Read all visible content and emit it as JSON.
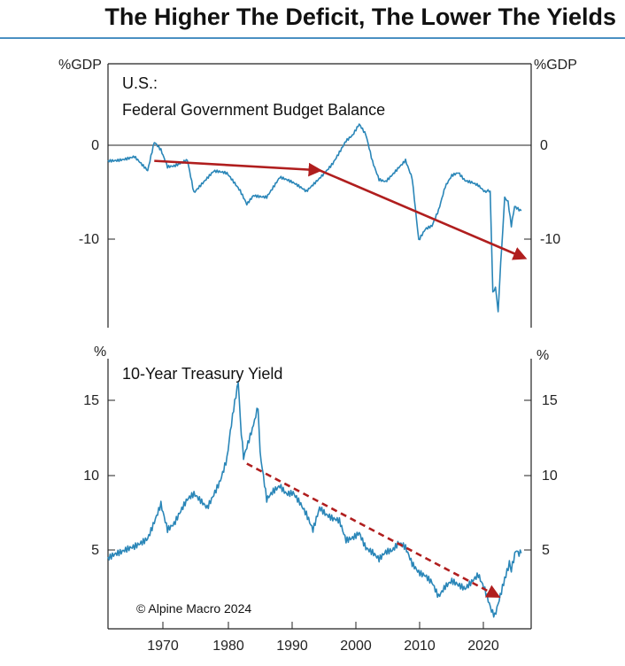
{
  "title": "The Higher The Deficit, The Lower The Yields",
  "credit": "© Alpine Macro 2024",
  "colors": {
    "line": "#2a86b8",
    "arrow": "#b01e1e",
    "rule": "#4a90c2"
  },
  "chart_data": [
    {
      "type": "line",
      "title": "U.S.:",
      "subtitle": "Federal Government Budget Balance",
      "ylabel": "%GDP",
      "ylim": [
        -19,
        9
      ],
      "xlim": [
        1962,
        2026
      ],
      "yticks": [
        0,
        -10
      ],
      "xticks": [
        1970,
        1980,
        1990,
        2000,
        2010,
        2020
      ],
      "zero_line": true,
      "series": [
        {
          "name": "Federal Government Budget Balance",
          "x": [
            1962,
            1964,
            1966,
            1968,
            1969,
            1970,
            1971,
            1972,
            1974,
            1975,
            1976,
            1978,
            1980,
            1982,
            1983,
            1984,
            1986,
            1988,
            1990,
            1992,
            1993,
            1995,
            1996,
            1997,
            1998,
            1999,
            2000,
            2001,
            2002,
            2003,
            2004,
            2006,
            2007,
            2008,
            2009,
            2010,
            2011,
            2012,
            2013,
            2014,
            2015,
            2016,
            2017,
            2018,
            2019,
            2019.8,
            2020.2,
            2020.6,
            2021,
            2021.4,
            2022,
            2022.5,
            2023,
            2023.5,
            2024,
            2024.5
          ],
          "values": [
            -1.2,
            -1.0,
            -0.8,
            -2.5,
            0.5,
            -0.3,
            -2.0,
            -1.8,
            -1.0,
            -4.5,
            -3.8,
            -2.5,
            -2.8,
            -4.5,
            -5.8,
            -4.8,
            -5.0,
            -3.1,
            -3.8,
            -4.6,
            -3.8,
            -2.2,
            -1.4,
            -0.3,
            0.8,
            1.3,
            2.4,
            1.3,
            -1.5,
            -3.3,
            -3.4,
            -1.8,
            -1.1,
            -3.1,
            -9.8,
            -8.7,
            -8.4,
            -6.7,
            -4.1,
            -2.8,
            -2.4,
            -3.2,
            -3.4,
            -3.8,
            -4.6,
            -4.7,
            -15.0,
            -14.5,
            -17.5,
            -12.0,
            -5.4,
            -5.8,
            -8.3,
            -6.2,
            -6.4,
            -6.6
          ]
        }
      ],
      "trend_arrows": [
        {
          "x": [
            1969,
            1994
          ],
          "y": [
            -1.3,
            -2.3
          ],
          "style": "solid"
        },
        {
          "x": [
            1994,
            2025
          ],
          "y": [
            -2.3,
            -11.6
          ],
          "style": "solid"
        }
      ]
    },
    {
      "type": "line",
      "title": "10-Year Treasury Yield",
      "ylabel": "%",
      "ylim": [
        -0.5,
        17
      ],
      "xlim": [
        1962,
        2026
      ],
      "yticks": [
        15,
        10,
        5
      ],
      "xticks": [
        1970,
        1980,
        1990,
        2000,
        2010,
        2020
      ],
      "xticklabels": [
        "1970",
        "1980",
        "1990",
        "2000",
        "2010",
        "2020"
      ],
      "series": [
        {
          "name": "10-Year Treasury Yield",
          "x": [
            1962,
            1964,
            1966,
            1968,
            1970,
            1971,
            1972,
            1974,
            1975,
            1977,
            1978,
            1979,
            1980,
            1980.5,
            1981,
            1981.7,
            1982,
            1982.5,
            1983,
            1984,
            1984.7,
            1985,
            1986,
            1987,
            1988,
            1989,
            1990,
            1991,
            1992,
            1993,
            1994,
            1995,
            1996,
            1997,
            1998,
            1999,
            2000,
            2001,
            2002,
            2003,
            2004,
            2005,
            2006,
            2007,
            2008,
            2009,
            2010,
            2011,
            2012,
            2013,
            2014,
            2015,
            2016,
            2017,
            2018,
            2019,
            2020,
            2020.5,
            2021,
            2022,
            2022.7,
            2023,
            2023.7,
            2024,
            2024.5
          ],
          "values": [
            3.9,
            4.2,
            4.8,
            5.6,
            7.8,
            6.0,
            6.2,
            7.6,
            8.0,
            7.4,
            8.4,
            9.4,
            10.8,
            12.5,
            13.9,
            15.8,
            13.0,
            10.5,
            11.1,
            12.4,
            13.8,
            10.6,
            7.7,
            8.4,
            8.9,
            8.5,
            8.6,
            7.9,
            7.0,
            5.8,
            7.1,
            6.6,
            6.4,
            6.4,
            5.3,
            5.6,
            6.0,
            5.0,
            4.6,
            4.0,
            4.3,
            4.3,
            4.8,
            4.6,
            3.7,
            3.3,
            3.2,
            2.8,
            1.8,
            2.3,
            2.5,
            2.1,
            1.8,
            2.3,
            2.9,
            2.1,
            0.9,
            0.6,
            1.4,
            3.0,
            4.0,
            3.5,
            4.9,
            4.3,
            4.4
          ]
        }
      ],
      "trend_arrows": [
        {
          "x": [
            1983,
            2021
          ],
          "y": [
            10.2,
            1.6
          ],
          "style": "dashed"
        }
      ]
    }
  ]
}
